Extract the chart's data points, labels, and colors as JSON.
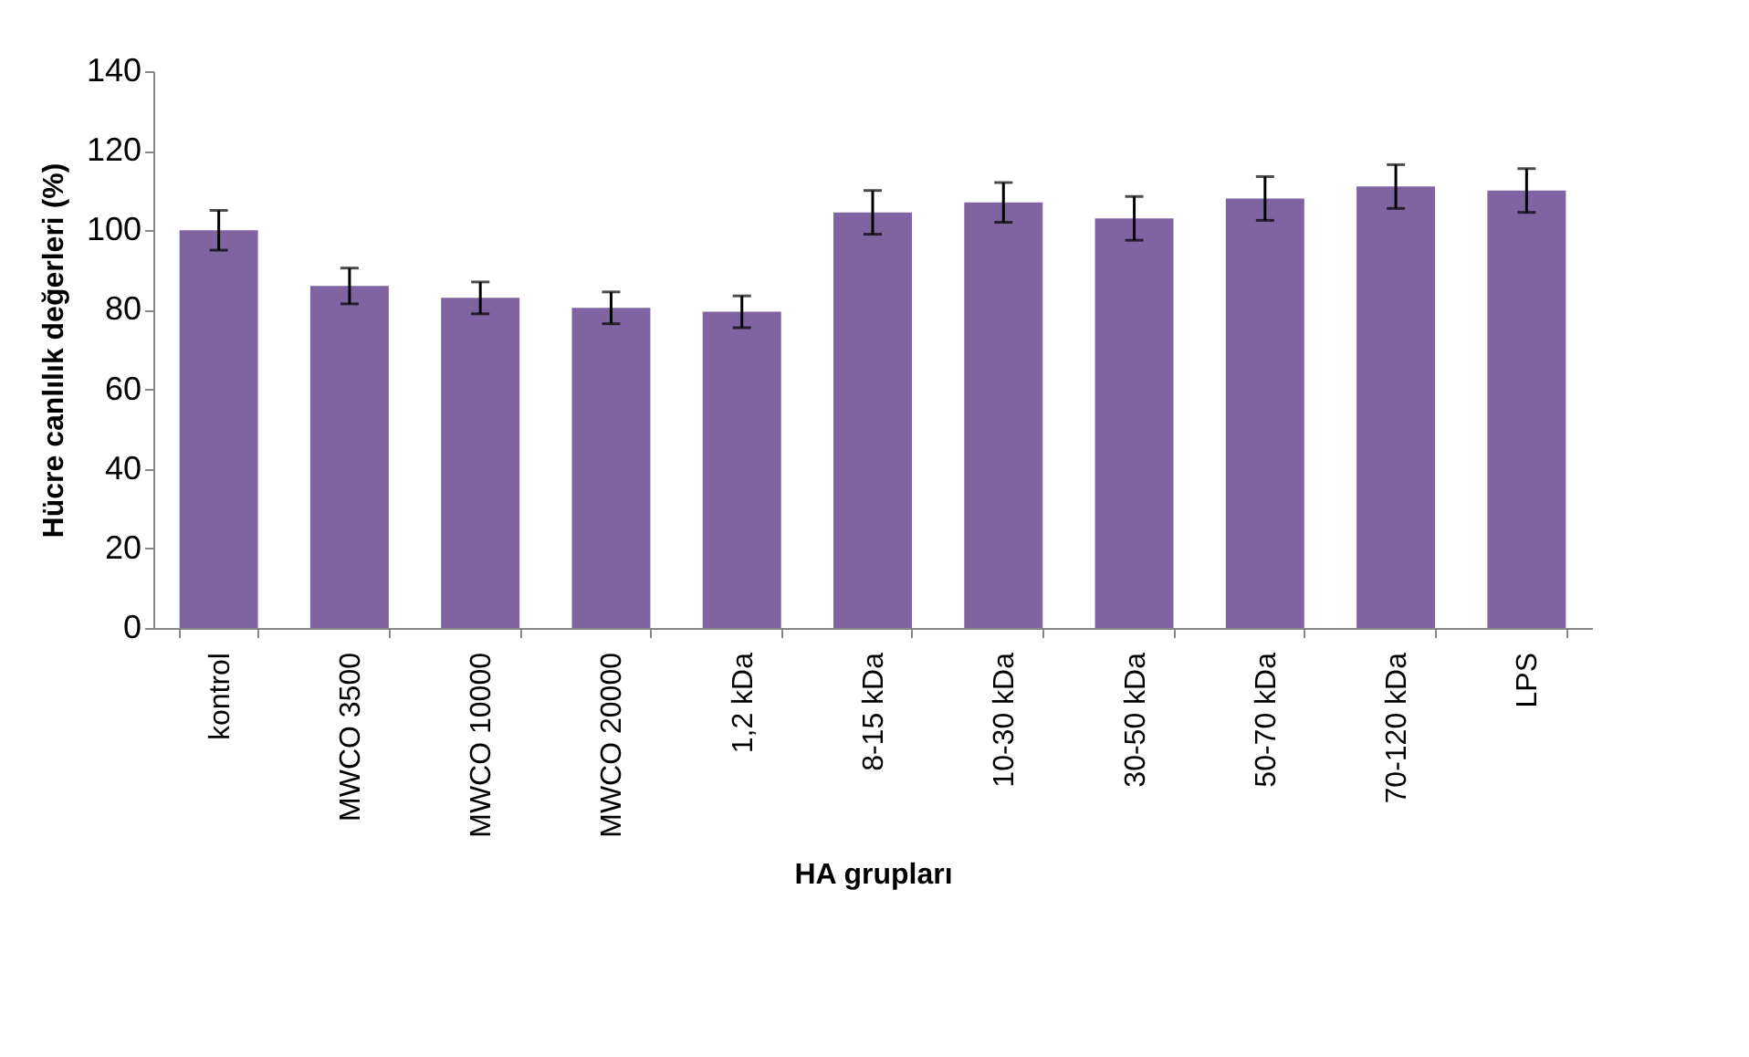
{
  "chart_data": {
    "type": "bar",
    "xlabel": "HA grupları",
    "ylabel": "Hücre canlılık değerleri (%)",
    "categories": [
      "kontrol",
      "MWCO 3500",
      "MWCO 10000",
      "MWCO 20000",
      "1,2 kDa",
      "8-15 kDa",
      "10-30 kDa",
      "30-50 kDa",
      "50-70 kDa",
      "70-120 kDa",
      "LPS"
    ],
    "values": [
      100,
      86,
      83,
      80.5,
      79.5,
      104.5,
      107,
      103,
      108,
      111,
      110
    ],
    "errors": [
      5,
      4.5,
      4,
      4,
      4,
      5.5,
      5,
      5.5,
      5.5,
      5.5,
      5.5
    ],
    "color": "#8064a2",
    "ylim": [
      0,
      140
    ],
    "yticks": [
      0,
      20,
      40,
      60,
      80,
      100,
      120,
      140
    ],
    "grid": false
  }
}
